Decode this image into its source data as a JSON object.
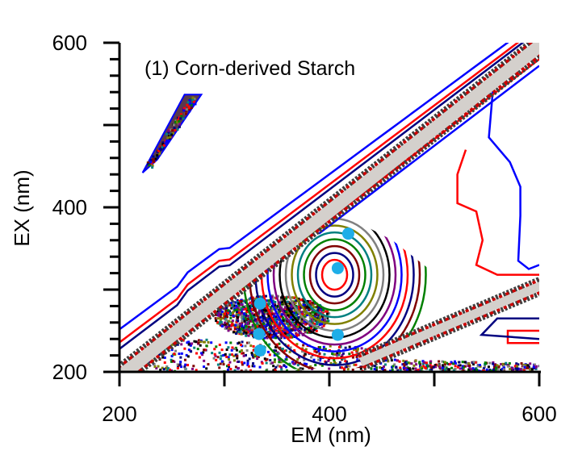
{
  "chart_data": {
    "type": "contour",
    "title": "(1) Corn-derived Starch",
    "xlabel": "EM (nm)",
    "ylabel": "EX (nm)",
    "xlim": [
      200,
      600
    ],
    "ylim": [
      200,
      600
    ],
    "x_ticks": [
      200,
      300,
      400,
      500,
      600
    ],
    "x_tick_labels": [
      "200",
      "400",
      "600"
    ],
    "y_ticks": [
      200,
      300,
      400,
      500,
      600
    ],
    "y_tick_labels": [
      "200",
      "400",
      "600"
    ],
    "grid": false,
    "peak_markers": [
      {
        "em": 418,
        "ex": 368
      },
      {
        "em": 408,
        "ex": 326
      },
      {
        "em": 334,
        "ex": 283
      },
      {
        "em": 333,
        "ex": 246
      },
      {
        "em": 334,
        "ex": 226
      },
      {
        "em": 408,
        "ex": 245
      }
    ],
    "marker_color": "#1eaee8",
    "scatter_band_color": "#d4d0cc",
    "contour_colors": [
      "#0000ff",
      "#ff0000",
      "#000080",
      "#800000",
      "#008000",
      "#008080",
      "#808000",
      "#808080",
      "#000000",
      "#800080"
    ],
    "outer_contours": [
      {
        "color": "#0000ff",
        "points": [
          [
            556,
            545
          ],
          [
            552,
            485
          ],
          [
            572,
            455
          ],
          [
            582,
            425
          ],
          [
            582,
            390
          ],
          [
            580,
            335
          ],
          [
            590,
            325
          ],
          [
            600,
            330
          ]
        ]
      },
      {
        "color": "#ff0000",
        "points": [
          [
            530,
            470
          ],
          [
            522,
            440
          ],
          [
            522,
            405
          ],
          [
            540,
            395
          ],
          [
            546,
            360
          ],
          [
            540,
            330
          ],
          [
            560,
            318
          ],
          [
            600,
            318
          ]
        ]
      },
      {
        "color": "#ff0000",
        "points": [
          [
            600,
            250
          ],
          [
            570,
            250
          ],
          [
            570,
            235
          ],
          [
            600,
            235
          ]
        ]
      },
      {
        "color": "#000080",
        "points": [
          [
            600,
            265
          ],
          [
            560,
            265
          ],
          [
            545,
            245
          ],
          [
            600,
            240
          ]
        ]
      }
    ]
  }
}
